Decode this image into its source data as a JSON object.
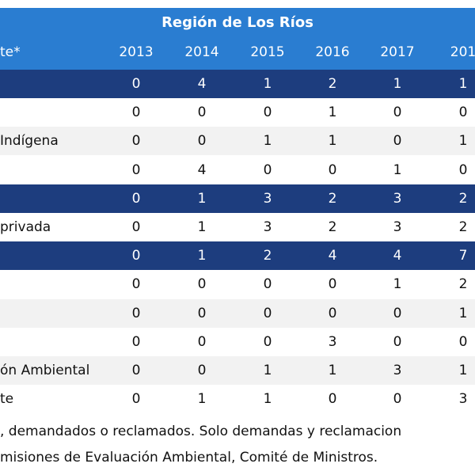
{
  "header": {
    "title": "Región de Los Ríos",
    "label": "te*",
    "years": [
      "2013",
      "2014",
      "2015",
      "2016",
      "2017",
      "201"
    ]
  },
  "table": {
    "rows": [
      {
        "style": "group",
        "values": [
          0,
          4,
          1,
          2,
          1,
          1
        ]
      },
      {
        "style": "plain",
        "values": [
          0,
          0,
          0,
          1,
          0,
          0
        ]
      },
      {
        "style": "shade",
        "label": "Indígena",
        "values": [
          0,
          0,
          1,
          1,
          0,
          1
        ]
      },
      {
        "style": "plain",
        "values": [
          0,
          4,
          0,
          0,
          1,
          0
        ]
      },
      {
        "style": "group",
        "values": [
          0,
          1,
          3,
          2,
          3,
          2
        ]
      },
      {
        "style": "plain",
        "label": "privada",
        "values": [
          0,
          1,
          3,
          2,
          3,
          2
        ]
      },
      {
        "style": "group",
        "values": [
          0,
          1,
          2,
          4,
          4,
          7
        ]
      },
      {
        "style": "plain",
        "values": [
          0,
          0,
          0,
          0,
          1,
          2
        ]
      },
      {
        "style": "shade",
        "values": [
          0,
          0,
          0,
          0,
          0,
          1
        ]
      },
      {
        "style": "plain",
        "values": [
          0,
          0,
          0,
          3,
          0,
          0
        ]
      },
      {
        "style": "shade",
        "label": "ón Ambiental",
        "values": [
          0,
          0,
          1,
          1,
          3,
          1
        ]
      },
      {
        "style": "plain",
        "label": "te",
        "values": [
          0,
          1,
          1,
          0,
          0,
          3
        ]
      }
    ]
  },
  "footnotes": [
    ", demandados o reclamados. Solo demandas y reclamacion",
    "misiones de Evaluación Ambiental, Comité de Ministros."
  ]
}
